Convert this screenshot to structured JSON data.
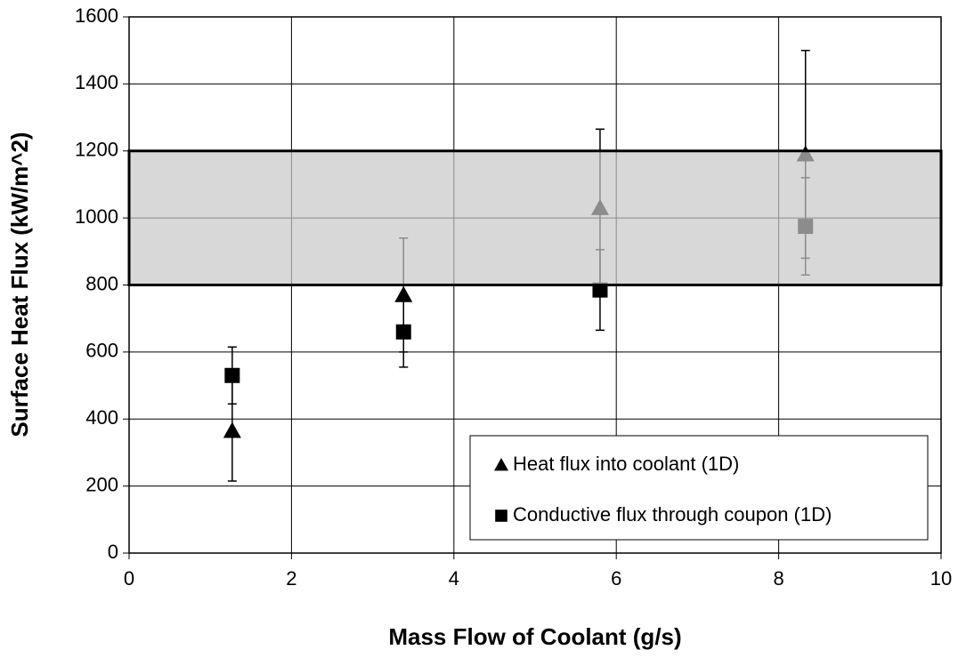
{
  "chart_data": {
    "type": "scatter",
    "x_label": "Mass Flow of Coolant (g/s)",
    "y_label": "Surface Heat Flux (kW/m^2)",
    "xlim": [
      0,
      10
    ],
    "xticks": [
      0,
      2,
      4,
      6,
      8,
      10
    ],
    "ylim": [
      0,
      1600
    ],
    "yticks": [
      0,
      200,
      400,
      600,
      800,
      1000,
      1200,
      1400,
      1600
    ],
    "grid": true,
    "legend": "lower right",
    "shaded_band": [
      800,
      1200
    ],
    "series": [
      {
        "name": "Heat flux into coolant (1D)",
        "color": "#000000",
        "marker": "triangle",
        "x": [
          1.27,
          3.38,
          5.8,
          8.33
        ],
        "values": [
          365,
          770,
          1030,
          1190
        ],
        "errors": [
          150,
          170,
          235,
          310
        ]
      },
      {
        "name": "Conductive flux through coupon (1D)",
        "color": "#000000",
        "marker": "square",
        "x": [
          1.27,
          3.38,
          5.8,
          8.33
        ],
        "values": [
          530,
          660,
          785,
          975
        ],
        "errors": [
          85,
          105,
          120,
          145
        ]
      }
    ]
  }
}
